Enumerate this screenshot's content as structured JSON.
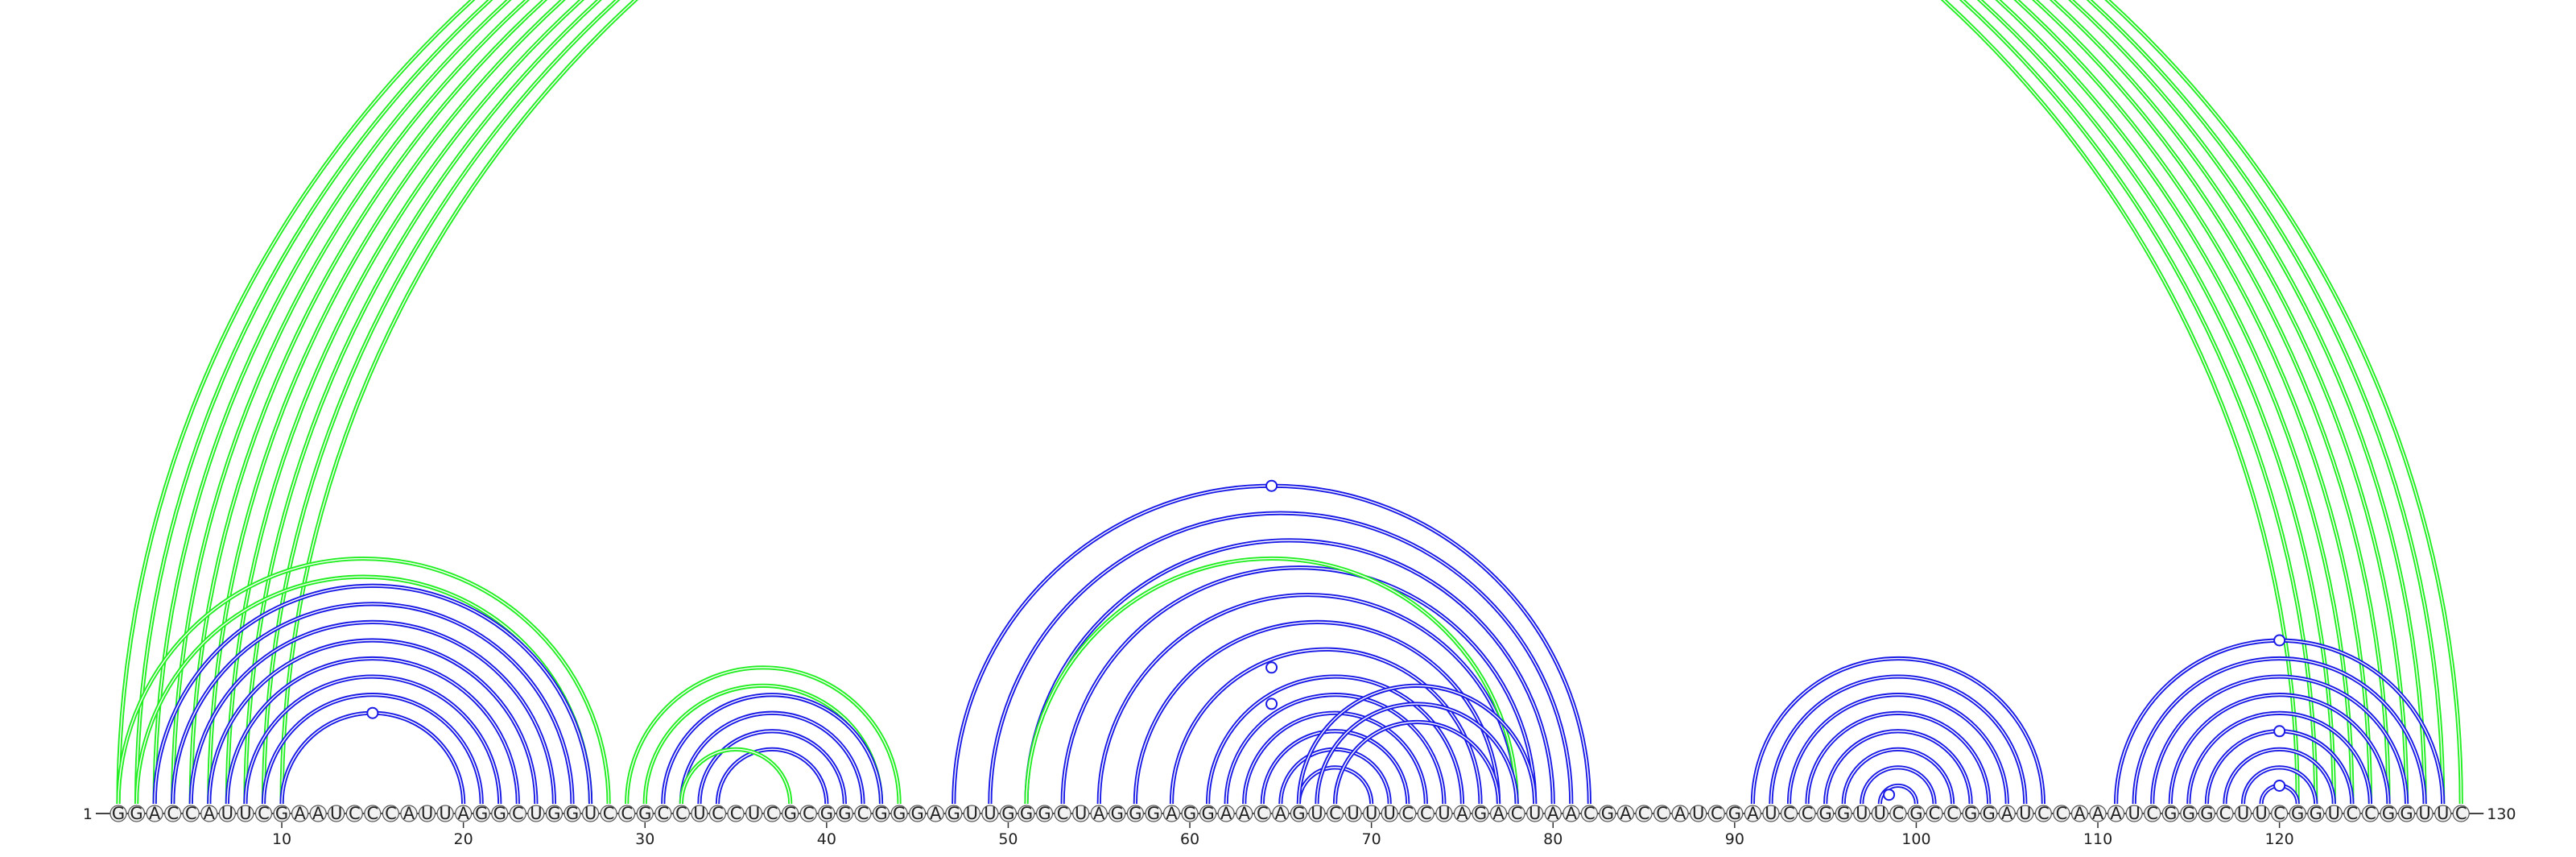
{
  "sequence": "GGACCAUUCGAAUCCCAUUAGGCUGGUCCGCCUCCUCGCGGCGGGAGUUGGGCUAGGGAGGAACAGUCUUUCCUAGACUAACGACCAUCGAUCCGGUUCGCCGGAUCCAAAUCGGGCUUCGGUCCGGUUC",
  "start_label": "1",
  "end_label": "130",
  "ticks": [
    10,
    20,
    30,
    40,
    50,
    60,
    70,
    80,
    90,
    100,
    110,
    120
  ],
  "colors": {
    "green": "#22ee22",
    "blue": "#1a1ae6",
    "backbone": "#444444",
    "nucleotide_fill": "#f2f2f2",
    "nucleotide_stroke": "#555555"
  },
  "arc_groups": [
    {
      "color": "green",
      "pairs": [
        [
          1,
          121
        ],
        [
          2,
          122
        ],
        [
          3,
          123
        ],
        [
          4,
          124
        ],
        [
          5,
          125
        ],
        [
          6,
          126
        ],
        [
          7,
          127
        ],
        [
          8,
          128
        ],
        [
          9,
          129
        ],
        [
          10,
          130
        ]
      ]
    },
    {
      "color": "green",
      "pairs": [
        [
          1,
          28
        ],
        [
          2,
          27
        ]
      ]
    },
    {
      "color": "blue",
      "pairs": [
        [
          3,
          27
        ],
        [
          4,
          26
        ],
        [
          5,
          25
        ],
        [
          6,
          24
        ],
        [
          7,
          23
        ],
        [
          8,
          22
        ],
        [
          9,
          21
        ],
        [
          10,
          20
        ]
      ]
    },
    {
      "color": "green",
      "pairs": [
        [
          29,
          44
        ],
        [
          30,
          43
        ]
      ]
    },
    {
      "color": "blue",
      "pairs": [
        [
          31,
          43
        ],
        [
          32,
          42
        ],
        [
          33,
          41
        ],
        [
          34,
          40
        ]
      ]
    },
    {
      "color": "green",
      "pairs": [
        [
          32,
          38
        ]
      ]
    },
    {
      "color": "blue",
      "pairs": [
        [
          47,
          82
        ],
        [
          49,
          81
        ],
        [
          51,
          80
        ],
        [
          53,
          79
        ],
        [
          55,
          78
        ],
        [
          57,
          77
        ],
        [
          59,
          76
        ],
        [
          61,
          75
        ],
        [
          62,
          74
        ],
        [
          63,
          73
        ],
        [
          64,
          72
        ],
        [
          65,
          71
        ],
        [
          66,
          70
        ]
      ]
    },
    {
      "color": "green",
      "pairs": [
        [
          51,
          78
        ]
      ]
    },
    {
      "color": "blue",
      "pairs": [
        [
          66,
          79
        ],
        [
          67,
          78
        ],
        [
          68,
          77
        ]
      ]
    },
    {
      "color": "blue",
      "pairs": [
        [
          91,
          107
        ],
        [
          92,
          106
        ],
        [
          93,
          105
        ],
        [
          94,
          104
        ],
        [
          95,
          103
        ],
        [
          96,
          102
        ],
        [
          97,
          101
        ],
        [
          98,
          100
        ]
      ]
    },
    {
      "color": "blue",
      "pairs": [
        [
          111,
          129
        ],
        [
          112,
          128
        ],
        [
          113,
          127
        ],
        [
          114,
          126
        ],
        [
          115,
          125
        ],
        [
          116,
          124
        ],
        [
          117,
          123
        ],
        [
          118,
          122
        ],
        [
          119,
          121
        ]
      ]
    }
  ],
  "markers": [
    {
      "color": "green",
      "pair": [
        1,
        130
      ]
    },
    {
      "color": "blue",
      "pair": [
        10,
        20
      ]
    },
    {
      "color": "blue",
      "pair": [
        47,
        82
      ]
    },
    {
      "color": "blue",
      "pair": [
        57,
        72
      ]
    },
    {
      "color": "blue",
      "pair": [
        59,
        70
      ]
    },
    {
      "color": "blue",
      "pair": [
        98,
        99
      ]
    },
    {
      "color": "blue",
      "pair": [
        111,
        129
      ]
    },
    {
      "color": "blue",
      "pair": [
        116,
        124
      ]
    },
    {
      "color": "blue",
      "pair": [
        119,
        121
      ]
    }
  ]
}
